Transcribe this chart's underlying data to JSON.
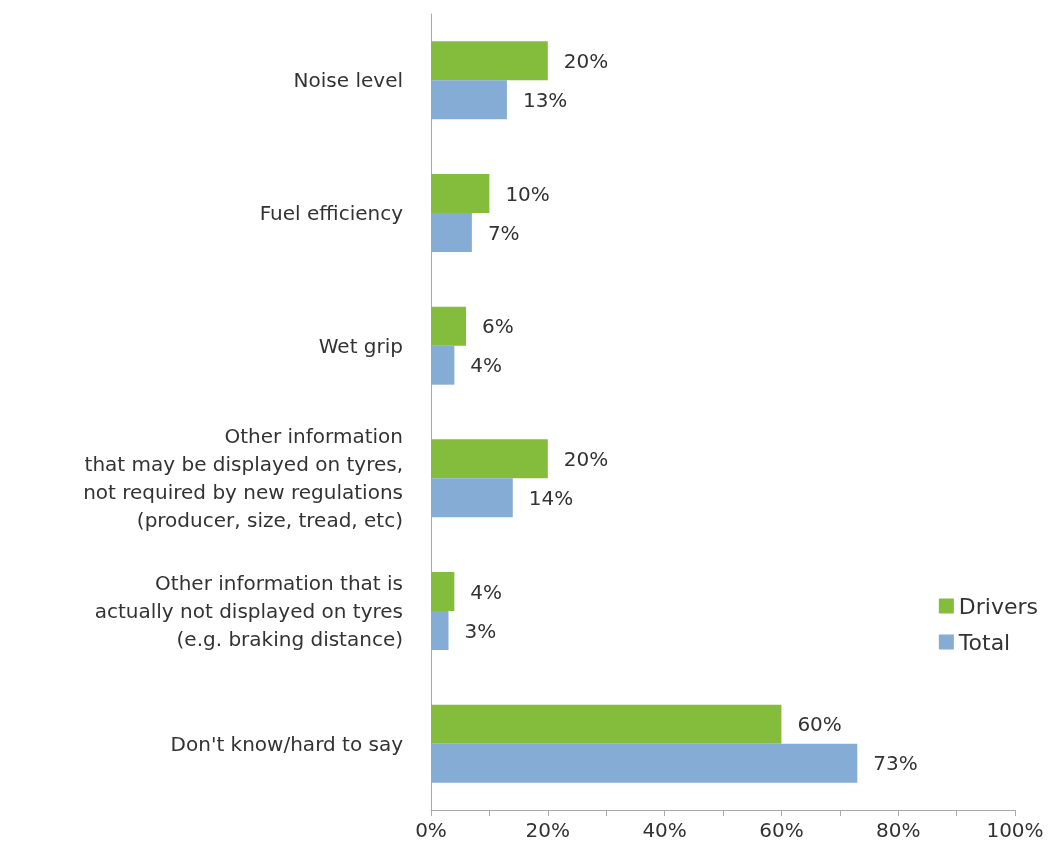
{
  "chart_data": {
    "type": "bar",
    "orientation": "horizontal",
    "categories": [
      "Noise level",
      "Fuel efficiency",
      "Wet grip",
      "Other information\nthat may be displayed on tyres,\nnot required by new regulations\n(producer, size, tread, etc)",
      "Other information that is\nactually not displayed on tyres\n(e.g. braking distance)",
      "Don't know/hard to say"
    ],
    "series": [
      {
        "name": "Drivers",
        "color": "#84bc3c",
        "values": [
          20,
          10,
          6,
          20,
          4,
          60
        ],
        "value_labels": [
          "20%",
          "10%",
          "6%",
          "20%",
          "4%",
          "60%"
        ]
      },
      {
        "name": "Total",
        "color": "#84acd4",
        "values": [
          13,
          7,
          4,
          14,
          3,
          73
        ],
        "value_labels": [
          "13%",
          "7%",
          "4%",
          "14%",
          "3%",
          "73%"
        ]
      }
    ],
    "xlim": [
      0,
      100
    ],
    "xticks": [
      {
        "value": 0,
        "label": "0%"
      },
      {
        "value": 10,
        "label": null
      },
      {
        "value": 20,
        "label": "20%"
      },
      {
        "value": 30,
        "label": null
      },
      {
        "value": 40,
        "label": "40%"
      },
      {
        "value": 50,
        "label": null
      },
      {
        "value": 60,
        "label": "60%"
      },
      {
        "value": 70,
        "label": null
      },
      {
        "value": 80,
        "label": "80%"
      },
      {
        "value": 90,
        "label": null
      },
      {
        "value": 100,
        "label": "100%"
      }
    ],
    "grid": false,
    "legend": "right"
  }
}
